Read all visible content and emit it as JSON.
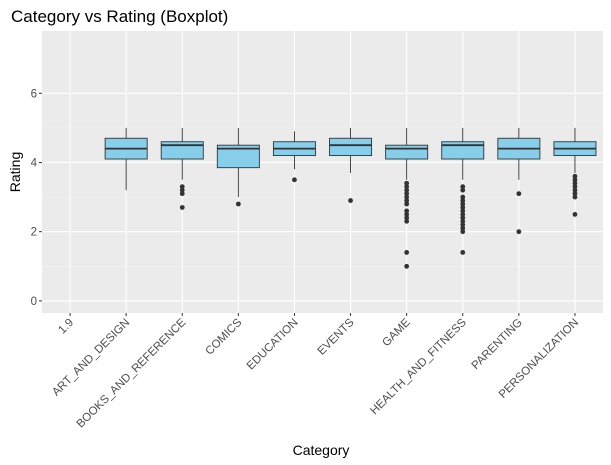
{
  "chart_data": {
    "type": "boxplot",
    "title": "Category vs Rating (Boxplot)",
    "xlabel": "Category",
    "ylabel": "Rating",
    "ylim": [
      -0.35,
      7.8
    ],
    "y_ticks": [
      0,
      2,
      4,
      6
    ],
    "grid": true,
    "categories": [
      "1.9",
      "ART_AND_DESIGN",
      "BOOKS_AND_REFERENCE",
      "COMICS",
      "EDUCATION",
      "EVENTS",
      "GAME",
      "HEALTH_AND_FITNESS",
      "PARENTING",
      "PERSONALIZATION"
    ],
    "boxes": [
      null,
      {
        "lower_whisker": 3.2,
        "q1": 4.1,
        "median": 4.4,
        "q3": 4.7,
        "upper_whisker": 5.0,
        "outliers": []
      },
      {
        "lower_whisker": 3.5,
        "q1": 4.1,
        "median": 4.5,
        "q3": 4.6,
        "upper_whisker": 5.0,
        "outliers": [
          3.3,
          3.2,
          3.1,
          2.7
        ]
      },
      {
        "lower_whisker": 3.0,
        "q1": 3.85,
        "median": 4.4,
        "q3": 4.5,
        "upper_whisker": 5.0,
        "outliers": [
          2.8
        ]
      },
      {
        "lower_whisker": 3.8,
        "q1": 4.2,
        "median": 4.4,
        "q3": 4.6,
        "upper_whisker": 4.9,
        "outliers": [
          3.5
        ]
      },
      {
        "lower_whisker": 3.7,
        "q1": 4.2,
        "median": 4.5,
        "q3": 4.7,
        "upper_whisker": 5.0,
        "outliers": [
          2.9
        ]
      },
      {
        "lower_whisker": 3.5,
        "q1": 4.1,
        "median": 4.4,
        "q3": 4.5,
        "upper_whisker": 5.0,
        "outliers": [
          3.4,
          3.3,
          3.2,
          3.1,
          3.0,
          2.9,
          2.8,
          2.6,
          2.5,
          2.4,
          2.3,
          1.4,
          1.0
        ]
      },
      {
        "lower_whisker": 3.5,
        "q1": 4.1,
        "median": 4.5,
        "q3": 4.6,
        "upper_whisker": 5.0,
        "outliers": [
          3.3,
          3.2,
          3.0,
          2.9,
          2.8,
          2.7,
          2.6,
          2.5,
          2.4,
          2.3,
          2.2,
          2.1,
          2.0,
          1.4
        ]
      },
      {
        "lower_whisker": 3.5,
        "q1": 4.1,
        "median": 4.4,
        "q3": 4.7,
        "upper_whisker": 5.0,
        "outliers": [
          3.1,
          2.0
        ]
      },
      {
        "lower_whisker": 3.7,
        "q1": 4.2,
        "median": 4.4,
        "q3": 4.6,
        "upper_whisker": 5.0,
        "outliers": [
          3.6,
          3.5,
          3.4,
          3.3,
          3.2,
          3.1,
          3.0,
          2.5
        ]
      }
    ],
    "colors": {
      "box_fill": "#87ceeb",
      "box_stroke": "#333333",
      "panel_bg": "#ebebeb",
      "grid_major": "#ffffff",
      "outlier": "#333333"
    }
  }
}
